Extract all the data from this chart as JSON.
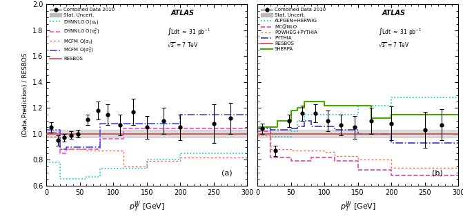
{
  "panel_a": {
    "data_x": [
      7,
      17,
      27,
      37,
      47,
      62,
      77,
      92,
      110,
      130,
      150,
      175,
      200,
      250,
      275
    ],
    "data_y": [
      1.05,
      0.95,
      0.97,
      0.99,
      1.0,
      1.11,
      1.18,
      1.15,
      1.07,
      1.17,
      1.05,
      1.1,
      1.05,
      1.08,
      1.12
    ],
    "data_yerr": [
      0.04,
      0.04,
      0.03,
      0.03,
      0.03,
      0.04,
      0.07,
      0.08,
      0.08,
      0.1,
      0.09,
      0.1,
      0.1,
      0.15,
      0.12
    ],
    "stat_uncert_x": [
      0,
      5,
      10,
      15,
      20,
      25,
      30,
      35,
      40,
      45,
      50,
      60,
      70,
      80,
      90,
      100,
      115,
      130,
      150,
      170,
      200,
      230,
      300
    ],
    "stat_uncert_y": [
      1.05,
      1.05,
      1.05,
      1.05,
      0.95,
      0.95,
      0.97,
      0.97,
      0.99,
      0.99,
      1.0,
      1.0,
      1.0,
      1.0,
      1.0,
      1.0,
      1.0,
      1.0,
      1.0,
      1.0,
      1.0,
      1.0,
      1.0
    ],
    "stat_uncert_err": [
      0.04,
      0.04,
      0.04,
      0.04,
      0.04,
      0.04,
      0.03,
      0.03,
      0.03,
      0.03,
      0.03,
      0.03,
      0.03,
      0.03,
      0.03,
      0.03,
      0.03,
      0.03,
      0.03,
      0.03,
      0.03,
      0.03,
      0.03
    ],
    "dynnlo_as_x": [
      0,
      5,
      10,
      15,
      20,
      25,
      30,
      35,
      40,
      50,
      60,
      70,
      80,
      100,
      115,
      130,
      150,
      170,
      200,
      230,
      300
    ],
    "dynnlo_as_y": [
      0.78,
      0.78,
      0.78,
      0.78,
      0.65,
      0.65,
      0.65,
      0.65,
      0.65,
      0.65,
      0.67,
      0.67,
      0.73,
      0.73,
      0.73,
      0.73,
      0.8,
      0.8,
      0.85,
      0.85,
      0.86
    ],
    "dynnlo_as2_x": [
      0,
      5,
      10,
      15,
      20,
      25,
      30,
      35,
      40,
      50,
      60,
      70,
      80,
      100,
      115,
      130,
      150,
      170,
      200,
      230,
      300
    ],
    "dynnlo_as2_y": [
      1.01,
      1.01,
      1.01,
      1.01,
      0.85,
      0.85,
      0.88,
      0.88,
      0.88,
      0.88,
      0.88,
      0.88,
      0.96,
      0.96,
      1.04,
      1.04,
      1.04,
      1.04,
      1.04,
      1.04,
      1.12
    ],
    "mcfm_as_x": [
      0,
      5,
      10,
      15,
      20,
      25,
      30,
      35,
      40,
      50,
      60,
      70,
      80,
      100,
      115,
      130,
      150,
      170,
      200,
      230,
      300
    ],
    "mcfm_as_y": [
      0.98,
      0.98,
      0.98,
      0.98,
      0.88,
      0.88,
      0.88,
      0.88,
      0.88,
      0.88,
      0.87,
      0.87,
      0.87,
      0.87,
      0.75,
      0.75,
      0.79,
      0.79,
      0.82,
      0.82,
      0.88
    ],
    "mcfm_as2_x": [
      0,
      5,
      10,
      15,
      20,
      25,
      30,
      35,
      40,
      50,
      60,
      70,
      80,
      100,
      115,
      130,
      150,
      170,
      200,
      230,
      300
    ],
    "mcfm_as2_y": [
      1.03,
      1.03,
      1.03,
      1.03,
      0.88,
      0.88,
      0.9,
      0.9,
      0.9,
      0.9,
      0.9,
      0.9,
      1.08,
      1.08,
      1.08,
      1.08,
      1.08,
      1.08,
      1.15,
      1.15,
      1.15
    ],
    "resbos_y": 1.0,
    "label_a": "(a)"
  },
  "panel_b": {
    "data_x": [
      7,
      27,
      47,
      67,
      87,
      105,
      125,
      145,
      170,
      200,
      250,
      275
    ],
    "data_y": [
      1.04,
      0.87,
      1.1,
      1.16,
      1.16,
      1.1,
      1.07,
      1.05,
      1.1,
      1.08,
      1.03,
      1.07
    ],
    "data_yerr": [
      0.04,
      0.04,
      0.05,
      0.06,
      0.07,
      0.08,
      0.08,
      0.09,
      0.1,
      0.13,
      0.14,
      0.12
    ],
    "alpgen_x": [
      0,
      5,
      10,
      15,
      20,
      25,
      30,
      35,
      40,
      50,
      60,
      70,
      80,
      100,
      115,
      130,
      150,
      170,
      200,
      230,
      300
    ],
    "alpgen_y": [
      1.05,
      1.05,
      1.05,
      1.05,
      0.98,
      0.98,
      0.98,
      0.98,
      0.98,
      1.02,
      1.1,
      1.15,
      1.15,
      1.15,
      1.15,
      1.15,
      1.22,
      1.22,
      1.28,
      1.28,
      1.3
    ],
    "mcnlo_x": [
      0,
      5,
      10,
      15,
      20,
      25,
      30,
      35,
      40,
      50,
      60,
      70,
      80,
      100,
      115,
      130,
      150,
      170,
      200,
      230,
      300
    ],
    "mcnlo_y": [
      1.02,
      1.02,
      1.02,
      1.02,
      0.82,
      0.82,
      0.82,
      0.82,
      0.82,
      0.79,
      0.79,
      0.79,
      0.82,
      0.82,
      0.79,
      0.79,
      0.72,
      0.72,
      0.68,
      0.68,
      0.66
    ],
    "powheg_x": [
      0,
      5,
      10,
      15,
      20,
      25,
      30,
      35,
      40,
      50,
      60,
      70,
      80,
      100,
      115,
      130,
      150,
      170,
      200,
      230,
      300
    ],
    "powheg_y": [
      0.99,
      0.99,
      0.99,
      0.99,
      0.88,
      0.88,
      0.88,
      0.88,
      0.88,
      0.87,
      0.87,
      0.87,
      0.87,
      0.86,
      0.83,
      0.83,
      0.8,
      0.8,
      0.74,
      0.74,
      0.66
    ],
    "pythia_x": [
      0,
      5,
      10,
      15,
      20,
      25,
      30,
      35,
      40,
      50,
      60,
      70,
      80,
      100,
      115,
      130,
      150,
      170,
      200,
      230,
      300
    ],
    "pythia_y": [
      1.04,
      1.04,
      1.04,
      1.04,
      1.03,
      1.03,
      1.03,
      1.03,
      1.03,
      1.04,
      1.06,
      1.1,
      1.06,
      1.06,
      1.03,
      1.03,
      1.0,
      1.0,
      0.93,
      0.93,
      0.9
    ],
    "resbos_y": 1.0,
    "sherpa_x": [
      0,
      5,
      10,
      15,
      20,
      25,
      30,
      35,
      40,
      50,
      60,
      70,
      80,
      100,
      115,
      130,
      150,
      170,
      200,
      230,
      300
    ],
    "sherpa_y": [
      1.05,
      1.05,
      1.05,
      1.05,
      1.05,
      1.05,
      1.1,
      1.1,
      1.1,
      1.18,
      1.2,
      1.25,
      1.25,
      1.22,
      1.22,
      1.22,
      1.22,
      1.12,
      1.15,
      1.15,
      1.15
    ],
    "label_b": "(b)"
  },
  "colors": {
    "data": "#000000",
    "stat_uncert": "#bbbbbb",
    "dynnlo_as": "#00cccc",
    "dynnlo_as2": "#ff44cc",
    "mcfm_as": "#ff6644",
    "mcfm_as2": "#4444ff",
    "resbos": "#cc4444",
    "alpgen": "#00cccc",
    "mcnlo": "#dd44aa",
    "powheg": "#ff6644",
    "pythia": "#3333cc",
    "sherpa": "#44aa00"
  },
  "ylim": [
    0.6,
    2.0
  ],
  "xlim": [
    0,
    300
  ],
  "ylabel": "(Data,Prediction) / RESBOS",
  "xlabel": "$p_T^W$ [GeV]"
}
